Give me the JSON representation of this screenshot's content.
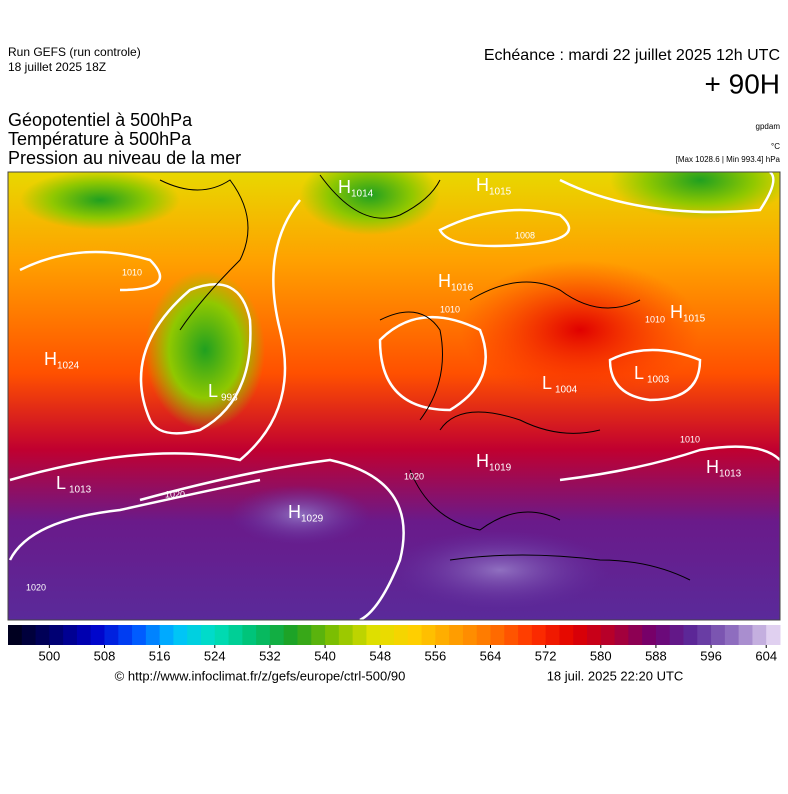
{
  "header": {
    "run": "Run GEFS (run controle)",
    "run_date": "18 juillet 2025 18Z",
    "valid_time": "Echéance : mardi 22 juillet 2025 12h UTC",
    "lead": "+ 90H"
  },
  "titles": [
    "Géopotentiel à 500hPa",
    "Température à 500hPa",
    "Pression au niveau de la mer"
  ],
  "units": [
    "gpdam",
    "°C",
    "[Max 1028.6 | Min 993.4] hPa"
  ],
  "centers": [
    {
      "kind": "H",
      "value": 1014
    },
    {
      "kind": "H",
      "value": 1015
    },
    {
      "kind": "H",
      "value": 1016
    },
    {
      "kind": "H",
      "value": 1015
    },
    {
      "kind": "H",
      "value": 1024
    },
    {
      "kind": "L",
      "value": 993
    },
    {
      "kind": "L",
      "value": 1004
    },
    {
      "kind": "L",
      "value": 1003
    },
    {
      "kind": "H",
      "value": 1019
    },
    {
      "kind": "H",
      "value": 1013
    },
    {
      "kind": "L",
      "value": 1013
    },
    {
      "kind": "H",
      "value": 1029
    }
  ],
  "isobar_labels": [
    1010,
    1010,
    1020,
    1020,
    1020,
    1010,
    1010,
    1008
  ],
  "colorbar": {
    "lim": [
      494,
      606
    ],
    "ticks": [
      500,
      508,
      516,
      524,
      532,
      540,
      548,
      556,
      564,
      572,
      580,
      588,
      596,
      604
    ],
    "colors": [
      "#000020",
      "#000070",
      "#0000c8",
      "#0050ff",
      "#00c0ff",
      "#00e0c0",
      "#00c070",
      "#20a020",
      "#80c000",
      "#e0e000",
      "#ffd000",
      "#ffa000",
      "#ff7000",
      "#ff3000",
      "#e00000",
      "#b00030",
      "#700070",
      "#5a2a9a",
      "#9070c0",
      "#e0d0f0"
    ]
  },
  "footer": {
    "source": "© http://www.infoclimat.fr/z/gefs/europe/ctrl-500/90",
    "generated": "18 juil. 2025 22:20 UTC"
  }
}
